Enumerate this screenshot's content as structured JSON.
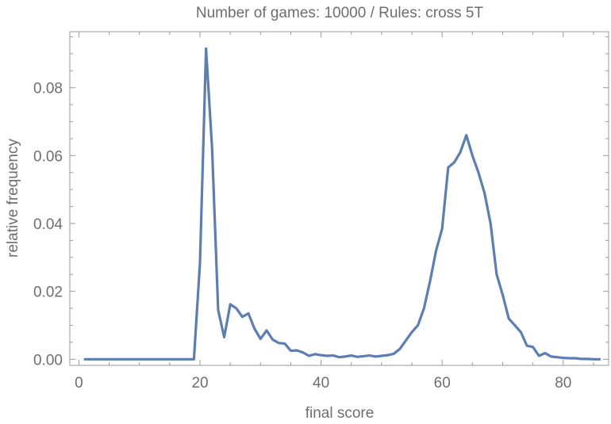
{
  "chart_data": {
    "type": "line",
    "title": "Number of games: 10000  /  Rules: cross 5T",
    "xlabel": "final score",
    "ylabel": "relative frequency",
    "xlim": [
      -1.5,
      87.5
    ],
    "ylim": [
      -0.0018,
      0.0965
    ],
    "x_ticks": [
      0,
      20,
      40,
      60,
      80
    ],
    "x_tick_labels": [
      "0",
      "20",
      "40",
      "60",
      "80"
    ],
    "x_minor_step": 5,
    "y_ticks": [
      0,
      0.02,
      0.04,
      0.06,
      0.08
    ],
    "y_tick_labels": [
      "0.00",
      "0.02",
      "0.04",
      "0.06",
      "0.08"
    ],
    "y_minor_step": 0.005,
    "grid": false,
    "series_color": "#5b7eb4",
    "series": [
      {
        "x": [
          1,
          2,
          3,
          4,
          5,
          6,
          7,
          8,
          9,
          10,
          11,
          12,
          13,
          14,
          15,
          16,
          17,
          18,
          19,
          20,
          21,
          22,
          23,
          24,
          25,
          26,
          27,
          28,
          29,
          30,
          31,
          32,
          33,
          34,
          35,
          36,
          37,
          38,
          39,
          40,
          41,
          42,
          43,
          44,
          45,
          46,
          47,
          48,
          49,
          50,
          51,
          52,
          53,
          54,
          55,
          56,
          57,
          58,
          59,
          60,
          61,
          62,
          63,
          64,
          65,
          66,
          67,
          68,
          69,
          70,
          71,
          72,
          73,
          74,
          75,
          76,
          77,
          78,
          79,
          80,
          81,
          82,
          83,
          84,
          85,
          86
        ],
        "values": [
          0,
          0,
          0,
          0,
          0,
          0,
          0,
          0,
          0,
          0,
          0,
          0,
          0,
          0,
          0,
          0,
          0,
          0,
          0,
          0.0285,
          0.0915,
          0.062,
          0.0145,
          0.0065,
          0.0162,
          0.015,
          0.0125,
          0.0135,
          0.009,
          0.006,
          0.0085,
          0.0058,
          0.0048,
          0.0046,
          0.0025,
          0.0026,
          0.002,
          0.001,
          0.0015,
          0.0012,
          0.001,
          0.0011,
          0.0006,
          0.0008,
          0.0011,
          0.0007,
          0.0009,
          0.0011,
          0.0008,
          0.001,
          0.0012,
          0.0016,
          0.003,
          0.0055,
          0.008,
          0.01,
          0.015,
          0.023,
          0.032,
          0.0385,
          0.0565,
          0.058,
          0.061,
          0.066,
          0.06,
          0.055,
          0.049,
          0.04,
          0.025,
          0.019,
          0.012,
          0.01,
          0.008,
          0.004,
          0.0036,
          0.001,
          0.0018,
          0.0008,
          0.0006,
          0.0004,
          0.0003,
          0.0003,
          0.0001,
          0.0001,
          0,
          0
        ]
      }
    ]
  }
}
